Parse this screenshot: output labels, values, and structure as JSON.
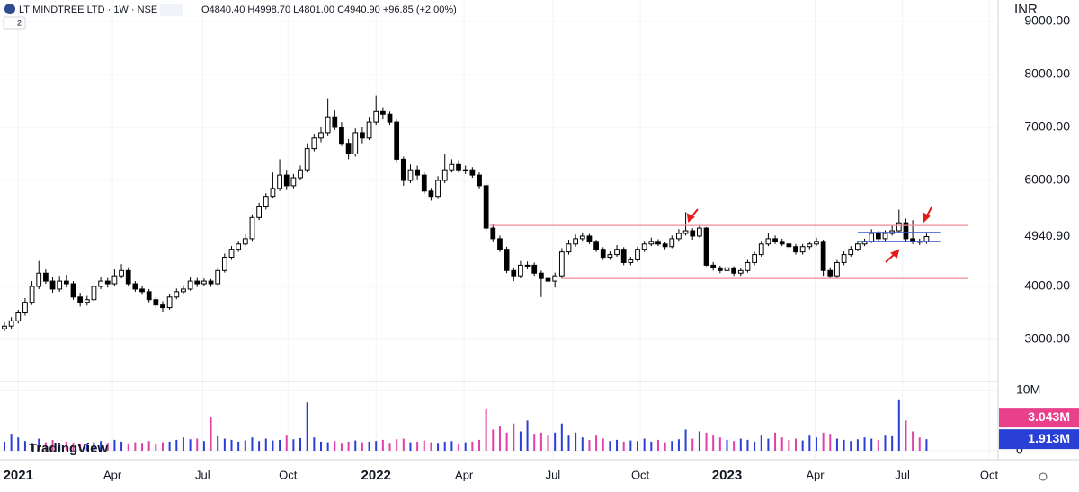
{
  "chart_data": {
    "type": "candlestick",
    "title": "LTIMINDTREE LTD · 1W · NSE",
    "subtitle": "O4840.40 H4998.70 L4801.00 C4940.90 +96.85 (+2.00%)",
    "currency": "INR",
    "indicator_count": "2",
    "watermark": "TradingView",
    "up_color": "#ffffff",
    "down_color": "#000000",
    "xlim": [
      -0.65,
      144.4
    ],
    "xticks": [
      {
        "value": 2,
        "label": "2021"
      },
      {
        "value": 15.7,
        "label": "Apr"
      },
      {
        "value": 28.8,
        "label": "Jul"
      },
      {
        "value": 41.2,
        "label": "Oct"
      },
      {
        "value": 54,
        "label": "2022"
      },
      {
        "value": 66.8,
        "label": "Apr"
      },
      {
        "value": 79.7,
        "label": "Jul"
      },
      {
        "value": 92.4,
        "label": "Oct"
      },
      {
        "value": 105,
        "label": "2023"
      },
      {
        "value": 117.8,
        "label": "Apr"
      },
      {
        "value": 130.5,
        "label": "Jul"
      },
      {
        "value": 143.1,
        "label": "Oct"
      }
    ],
    "ylim": [
      2203,
      9407
    ],
    "yticks": [
      {
        "value": 3000,
        "label": "3000.00"
      },
      {
        "value": 4000,
        "label": "4000.00"
      },
      {
        "value": 6000,
        "label": "6000.00"
      },
      {
        "value": 7000,
        "label": "7000.00"
      },
      {
        "value": 8000,
        "label": "8000.00"
      },
      {
        "value": 9000,
        "label": "9000.00"
      }
    ],
    "last_price": {
      "value": 4940.9,
      "label": "4940.90"
    },
    "levels": [
      {
        "value": 5150,
        "from": 70.5,
        "to": 140,
        "color": "#f28b96"
      },
      {
        "value": 4150,
        "from": 81,
        "to": 140,
        "color": "#f28b96"
      },
      {
        "value": 5020,
        "from": 124,
        "to": 136,
        "color": "#3355cc"
      },
      {
        "value": 4850,
        "from": 124,
        "to": 136,
        "color": "#3355cc"
      }
    ],
    "ohlc": [
      [
        3200,
        3320,
        3150,
        3250
      ],
      [
        3250,
        3420,
        3200,
        3350
      ],
      [
        3350,
        3560,
        3300,
        3500
      ],
      [
        3500,
        3780,
        3450,
        3700
      ],
      [
        3700,
        4100,
        3650,
        4000
      ],
      [
        4000,
        4480,
        3950,
        4250
      ],
      [
        4250,
        4320,
        4050,
        4100
      ],
      [
        4100,
        4180,
        3880,
        3950
      ],
      [
        3950,
        4200,
        3900,
        4100
      ],
      [
        4100,
        4220,
        3980,
        4050
      ],
      [
        4050,
        4100,
        3750,
        3800
      ],
      [
        3800,
        3880,
        3620,
        3700
      ],
      [
        3700,
        3820,
        3640,
        3750
      ],
      [
        3750,
        4080,
        3700,
        4000
      ],
      [
        4000,
        4180,
        3950,
        4100
      ],
      [
        4100,
        4160,
        3980,
        4050
      ],
      [
        4050,
        4320,
        4000,
        4200
      ],
      [
        4200,
        4420,
        4150,
        4300
      ],
      [
        4300,
        4360,
        4000,
        4050
      ],
      [
        4050,
        4100,
        3900,
        3950
      ],
      [
        3950,
        4000,
        3840,
        3900
      ],
      [
        3900,
        3950,
        3700,
        3750
      ],
      [
        3750,
        3800,
        3600,
        3650
      ],
      [
        3650,
        3720,
        3520,
        3600
      ],
      [
        3600,
        3860,
        3560,
        3800
      ],
      [
        3800,
        3960,
        3760,
        3900
      ],
      [
        3900,
        4020,
        3850,
        3950
      ],
      [
        3950,
        4180,
        3920,
        4100
      ],
      [
        4100,
        4160,
        3990,
        4050
      ],
      [
        4050,
        4150,
        4000,
        4100
      ],
      [
        4100,
        4140,
        3990,
        4050
      ],
      [
        4050,
        4360,
        4020,
        4300
      ],
      [
        4300,
        4620,
        4260,
        4550
      ],
      [
        4550,
        4760,
        4500,
        4700
      ],
      [
        4700,
        4860,
        4650,
        4800
      ],
      [
        4800,
        4980,
        4760,
        4900
      ],
      [
        4900,
        5360,
        4860,
        5300
      ],
      [
        5300,
        5580,
        5250,
        5500
      ],
      [
        5500,
        5760,
        5450,
        5700
      ],
      [
        5700,
        6150,
        5660,
        5850
      ],
      [
        5850,
        6400,
        5800,
        6100
      ],
      [
        6100,
        6200,
        5820,
        5900
      ],
      [
        5900,
        6120,
        5850,
        6050
      ],
      [
        6050,
        6280,
        6000,
        6200
      ],
      [
        6200,
        6700,
        6150,
        6600
      ],
      [
        6600,
        6880,
        6550,
        6800
      ],
      [
        6800,
        7000,
        6720,
        6900
      ],
      [
        6900,
        7550,
        6850,
        7200
      ],
      [
        7200,
        7320,
        6950,
        7000
      ],
      [
        7000,
        7100,
        6650,
        6700
      ],
      [
        6700,
        6780,
        6400,
        6500
      ],
      [
        6500,
        6980,
        6450,
        6900
      ],
      [
        6900,
        7000,
        6700,
        6800
      ],
      [
        6800,
        7200,
        6760,
        7100
      ],
      [
        7100,
        7600,
        7050,
        7300
      ],
      [
        7300,
        7380,
        7150,
        7250
      ],
      [
        7250,
        7300,
        7050,
        7100
      ],
      [
        7100,
        7150,
        6350,
        6400
      ],
      [
        6400,
        6450,
        5900,
        6000
      ],
      [
        6000,
        6300,
        5950,
        6200
      ],
      [
        6200,
        6280,
        6020,
        6100
      ],
      [
        6100,
        6150,
        5750,
        5800
      ],
      [
        5800,
        5860,
        5620,
        5700
      ],
      [
        5700,
        6080,
        5650,
        6000
      ],
      [
        6000,
        6500,
        5950,
        6200
      ],
      [
        6200,
        6400,
        6150,
        6300
      ],
      [
        6300,
        6380,
        6150,
        6200
      ],
      [
        6200,
        6280,
        6120,
        6200
      ],
      [
        6200,
        6250,
        6050,
        6100
      ],
      [
        6100,
        6150,
        5850,
        5900
      ],
      [
        5900,
        5950,
        5050,
        5100
      ],
      [
        5100,
        5180,
        4850,
        4900
      ],
      [
        4900,
        4960,
        4650,
        4700
      ],
      [
        4700,
        4750,
        4250,
        4300
      ],
      [
        4300,
        4360,
        4100,
        4200
      ],
      [
        4200,
        4480,
        4150,
        4400
      ],
      [
        4400,
        4470,
        4320,
        4400
      ],
      [
        4400,
        4450,
        4200,
        4250
      ],
      [
        4250,
        4300,
        3800,
        4150
      ],
      [
        4150,
        4200,
        4050,
        4100
      ],
      [
        4100,
        4260,
        3980,
        4200
      ],
      [
        4200,
        4720,
        4150,
        4650
      ],
      [
        4650,
        4880,
        4600,
        4800
      ],
      [
        4800,
        4980,
        4750,
        4900
      ],
      [
        4900,
        5020,
        4860,
        4950
      ],
      [
        4950,
        4990,
        4800,
        4850
      ],
      [
        4850,
        4880,
        4650,
        4700
      ],
      [
        4700,
        4740,
        4500,
        4550
      ],
      [
        4550,
        4660,
        4500,
        4600
      ],
      [
        4600,
        4780,
        4560,
        4700
      ],
      [
        4700,
        4740,
        4400,
        4450
      ],
      [
        4450,
        4560,
        4400,
        4500
      ],
      [
        4500,
        4750,
        4460,
        4700
      ],
      [
        4700,
        4860,
        4650,
        4800
      ],
      [
        4800,
        4920,
        4760,
        4850
      ],
      [
        4850,
        4890,
        4760,
        4800
      ],
      [
        4800,
        4840,
        4700,
        4750
      ],
      [
        4750,
        4960,
        4720,
        4900
      ],
      [
        4900,
        5080,
        4860,
        5000
      ],
      [
        5000,
        5400,
        4960,
        5050
      ],
      [
        5050,
        5100,
        4880,
        4950
      ],
      [
        4950,
        5150,
        4920,
        5100
      ],
      [
        5100,
        5120,
        4380,
        4400
      ],
      [
        4400,
        4460,
        4300,
        4350
      ],
      [
        4350,
        4390,
        4250,
        4300
      ],
      [
        4300,
        4400,
        4260,
        4350
      ],
      [
        4350,
        4380,
        4200,
        4250
      ],
      [
        4250,
        4340,
        4200,
        4300
      ],
      [
        4300,
        4500,
        4260,
        4450
      ],
      [
        4450,
        4650,
        4400,
        4600
      ],
      [
        4600,
        4860,
        4560,
        4800
      ],
      [
        4800,
        5000,
        4760,
        4900
      ],
      [
        4900,
        4960,
        4800,
        4850
      ],
      [
        4850,
        4900,
        4760,
        4800
      ],
      [
        4800,
        4840,
        4700,
        4750
      ],
      [
        4750,
        4800,
        4600,
        4650
      ],
      [
        4650,
        4800,
        4600,
        4750
      ],
      [
        4750,
        4850,
        4700,
        4800
      ],
      [
        4800,
        4920,
        4760,
        4850
      ],
      [
        4850,
        4880,
        4200,
        4300
      ],
      [
        4300,
        4360,
        4150,
        4200
      ],
      [
        4200,
        4500,
        4160,
        4450
      ],
      [
        4450,
        4660,
        4400,
        4600
      ],
      [
        4600,
        4760,
        4560,
        4700
      ],
      [
        4700,
        4860,
        4660,
        4800
      ],
      [
        4800,
        4900,
        4760,
        4850
      ],
      [
        4850,
        5080,
        4820,
        5000
      ],
      [
        5000,
        5050,
        4860,
        4900
      ],
      [
        4900,
        5060,
        4860,
        5000
      ],
      [
        5000,
        5150,
        4960,
        5050
      ],
      [
        5050,
        5450,
        5000,
        5200
      ],
      [
        5200,
        5280,
        4850,
        4900
      ],
      [
        4900,
        5250,
        4800,
        4850
      ],
      [
        4850,
        4900,
        4780,
        4844
      ],
      [
        4840.4,
        4998.7,
        4801,
        4940.9
      ]
    ],
    "volume": {
      "up_color": "#2a3fd6",
      "down_color": "#e040a8",
      "ylim": [
        0,
        11
      ],
      "yticks": [
        {
          "value": 0,
          "label": "0"
        },
        {
          "value": 10,
          "label": "10M"
        }
      ],
      "values": [
        1.5,
        2.8,
        2.2,
        1.6,
        1.3,
        2.0,
        1.4,
        1.8,
        1.2,
        1.5,
        1.3,
        1.1,
        1.2,
        1.4,
        1.6,
        1.3,
        1.8,
        1.5,
        1.2,
        1.4,
        1.3,
        1.6,
        1.2,
        1.4,
        1.5,
        1.8,
        2.2,
        1.9,
        2.0,
        1.6,
        5.5,
        2.4,
        2.0,
        1.8,
        1.5,
        1.7,
        2.2,
        1.6,
        2.0,
        1.7,
        1.8,
        2.5,
        1.9,
        2.1,
        8.0,
        2.2,
        1.5,
        1.4,
        1.6,
        1.3,
        1.5,
        1.7,
        1.4,
        1.5,
        1.6,
        1.8,
        1.3,
        1.9,
        2.0,
        1.4,
        1.5,
        1.7,
        1.4,
        1.3,
        1.5,
        1.6,
        1.2,
        1.4,
        1.5,
        1.8,
        7.0,
        3.5,
        4.0,
        3.0,
        4.5,
        3.2,
        5.0,
        2.8,
        3.0,
        2.5,
        3.0,
        4.5,
        2.5,
        3.0,
        2.2,
        1.8,
        2.5,
        2.0,
        1.6,
        1.8,
        1.5,
        1.7,
        1.6,
        2.0,
        1.5,
        1.8,
        1.4,
        1.6,
        1.9,
        3.5,
        2.0,
        3.2,
        3.0,
        2.5,
        2.2,
        1.8,
        1.6,
        2.0,
        1.8,
        1.5,
        2.5,
        2.0,
        3.0,
        2.2,
        1.8,
        2.0,
        1.7,
        2.5,
        2.2,
        3.0,
        2.8,
        2.0,
        1.8,
        1.6,
        1.9,
        2.2,
        2.0,
        1.8,
        2.5,
        2.4,
        8.5,
        5.0,
        3.2,
        2.2,
        1.913
      ],
      "ma": {
        "value": 3.043,
        "label": "3.043M",
        "color": "#e8408a"
      },
      "last": {
        "value": 1.913,
        "label": "1.913M",
        "color": "#2a3fd6"
      }
    }
  }
}
